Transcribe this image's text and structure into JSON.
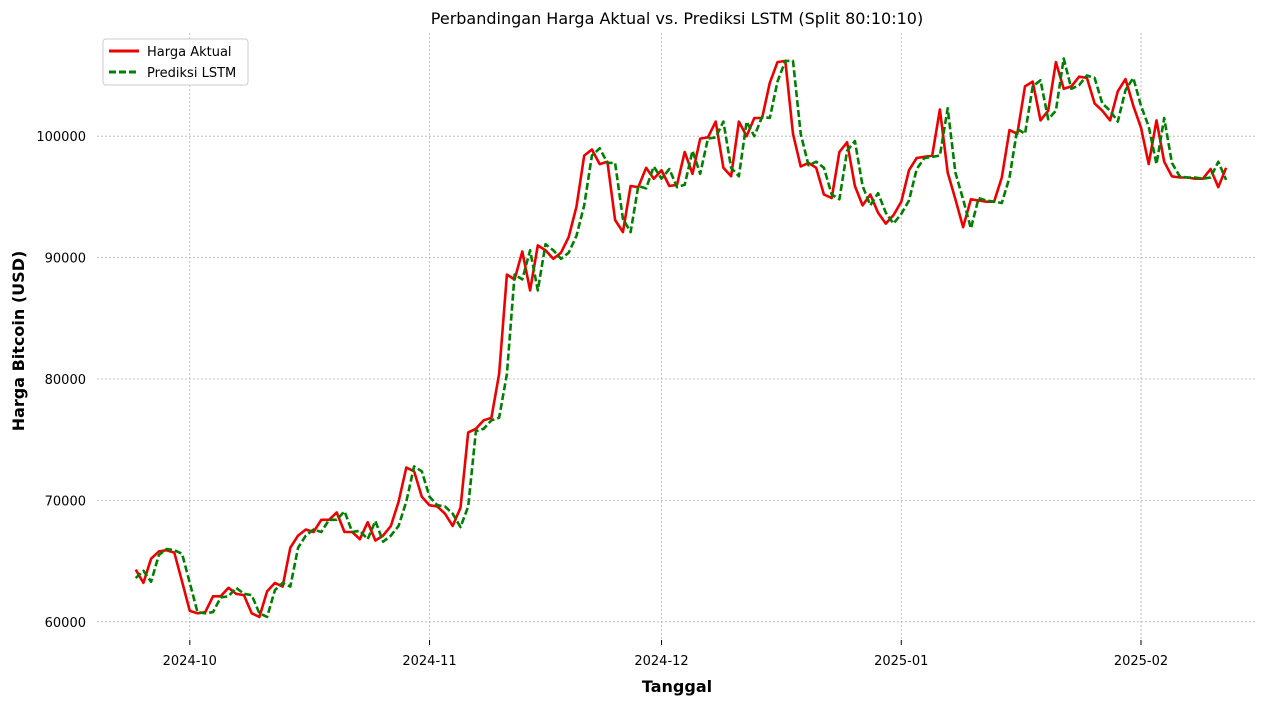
{
  "chart_data": {
    "type": "line",
    "title": "Perbandingan Harga Aktual vs. Prediksi LSTM (Split 80:10:10)",
    "xlabel": "Tanggal",
    "ylabel": "Harga Bitcoin (USD)",
    "x_start": "2024-09-24",
    "x_end": "2025-02-11",
    "xlim": [
      "2024-09-19",
      "2025-02-16"
    ],
    "ylim": [
      58500,
      108500
    ],
    "x_ticks": [
      "2024-10",
      "2024-11",
      "2024-12",
      "2025-01",
      "2025-02"
    ],
    "y_ticks": [
      60000,
      70000,
      80000,
      90000,
      100000
    ],
    "grid": true,
    "legend_position": "top-left",
    "series": [
      {
        "name": "Harga Aktual",
        "color": "#ee0000",
        "style": "solid",
        "values": [
          64300,
          63200,
          65200,
          65800,
          65900,
          65700,
          63300,
          60900,
          60700,
          60800,
          62100,
          62100,
          62800,
          62300,
          62200,
          60700,
          60400,
          62500,
          63200,
          62900,
          66100,
          67100,
          67600,
          67400,
          68400,
          68400,
          69000,
          67400,
          67400,
          66800,
          68200,
          66700,
          67100,
          67900,
          69900,
          72700,
          72400,
          70300,
          69600,
          69500,
          68900,
          67900,
          69400,
          75600,
          75900,
          76600,
          76800,
          80400,
          88600,
          88200,
          90500,
          87300,
          91000,
          90600,
          89900,
          90400,
          91700,
          94200,
          98400,
          98900,
          97700,
          97900,
          93100,
          92100,
          95900,
          95800,
          97400,
          96500,
          97200,
          95900,
          96000,
          98700,
          96900,
          99800,
          99900,
          101200,
          97400,
          96700,
          101200,
          100000,
          101500,
          101500,
          104400,
          106100,
          106200,
          100200,
          97500,
          97800,
          97400,
          95200,
          94900,
          98700,
          99500,
          95900,
          94300,
          95200,
          93700,
          92800,
          93500,
          94600,
          97200,
          98200,
          98300,
          98400,
          102200,
          97000,
          94800,
          92500,
          94800,
          94700,
          94600,
          94600,
          96600,
          100500,
          100200,
          104100,
          104500,
          101300,
          102100,
          106100,
          103900,
          104100,
          104900,
          104800,
          102700,
          102100,
          101300,
          103700,
          104700,
          102500,
          100700,
          97700,
          101300,
          97900,
          96700,
          96600,
          96600,
          96500,
          96500,
          97300,
          95800,
          97400
        ]
      },
      {
        "name": "Prediksi LSTM",
        "color": "#008000",
        "style": "dashed",
        "values": [
          63600,
          64200,
          63300,
          65500,
          66000,
          65900,
          65600,
          63200,
          60800,
          60700,
          60800,
          62000,
          62100,
          62800,
          62300,
          62200,
          60700,
          60400,
          62600,
          63200,
          62900,
          66100,
          67100,
          67600,
          67400,
          68400,
          68400,
          69100,
          67400,
          67500,
          66800,
          68300,
          66600,
          67100,
          67900,
          69900,
          72800,
          72400,
          70300,
          69600,
          69500,
          68900,
          67800,
          69500,
          75700,
          75900,
          76600,
          76800,
          80400,
          88600,
          88200,
          90600,
          87300,
          91100,
          90600,
          89900,
          90400,
          91800,
          94300,
          98400,
          99000,
          97800,
          97800,
          93200,
          92100,
          95900,
          95700,
          97500,
          96500,
          97300,
          95800,
          96000,
          98800,
          96900,
          99800,
          99900,
          101200,
          97400,
          96700,
          101200,
          100000,
          101600,
          101500,
          104500,
          106200,
          106200,
          100200,
          97600,
          97900,
          97400,
          95200,
          94800,
          98800,
          99600,
          95900,
          94300,
          95300,
          93700,
          92800,
          93600,
          94700,
          97300,
          98200,
          98300,
          98400,
          102300,
          97000,
          94800,
          92400,
          94900,
          94700,
          94600,
          94500,
          96600,
          100600,
          100200,
          104100,
          104600,
          101400,
          102100,
          106400,
          103900,
          104200,
          105000,
          104800,
          102700,
          102100,
          101200,
          103800,
          104800,
          102500,
          100800,
          97700,
          101500,
          97800,
          96700,
          96600,
          96600,
          96500,
          96600,
          97900,
          96400
        ]
      }
    ]
  }
}
